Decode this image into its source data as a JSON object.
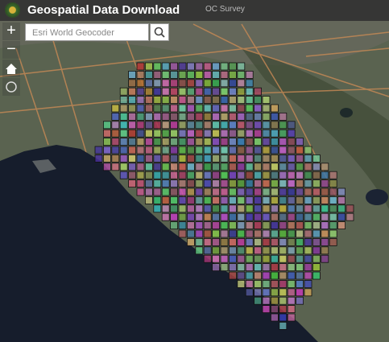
{
  "header": {
    "title": "Geospatial Data Download",
    "subtitle": "OC Survey"
  },
  "search": {
    "placeholder": "Esri World Geocoder"
  },
  "controls": {
    "zoom_in": "+",
    "zoom_out": "−"
  }
}
